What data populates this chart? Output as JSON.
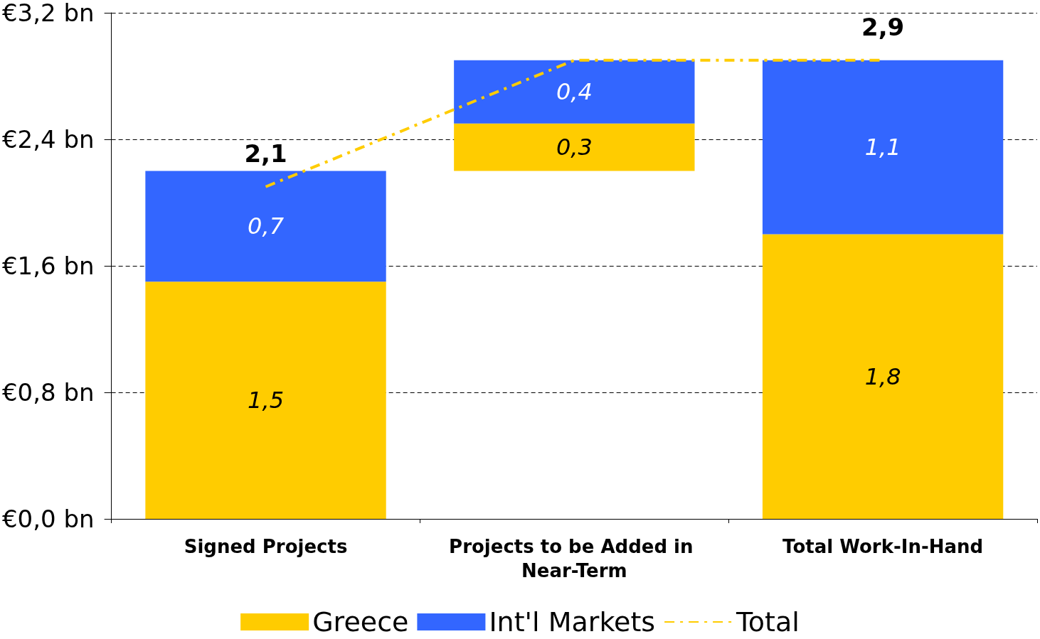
{
  "chart_data": {
    "type": "bar",
    "stacked": true,
    "categories": [
      "Signed Projects",
      "Projects to be Added in Near-Term",
      "Total Work-In-Hand"
    ],
    "series": [
      {
        "name": "Greece",
        "color": "#ffcc00",
        "base": [
          0,
          2.2,
          0
        ],
        "values": [
          1.5,
          0.3,
          1.8
        ],
        "value_labels": [
          "1,5",
          "0,3",
          "1,8"
        ]
      },
      {
        "name": "Int'l Markets",
        "color": "#3366ff",
        "values": [
          0.7,
          0.4,
          1.1
        ],
        "value_labels": [
          "0,7",
          "0,4",
          "1,1"
        ]
      },
      {
        "name": "Total",
        "type": "line",
        "color": "#ffcc00",
        "line_style": "dashed",
        "marker": "none",
        "values": [
          2.1,
          2.9,
          2.9
        ],
        "value_labels": [
          "2,1",
          null,
          "2,9"
        ]
      }
    ],
    "ylim": [
      0,
      3.2
    ],
    "yticks": [
      {
        "value": 0,
        "label": "€0,0 bn"
      },
      {
        "value": 0.8,
        "label": "€0,8 bn"
      },
      {
        "value": 1.6,
        "label": "€1,6 bn"
      },
      {
        "value": 2.4,
        "label": "€2,4 bn"
      },
      {
        "value": 3.2,
        "label": "€3,2 bn"
      }
    ],
    "grid": "y",
    "legend": "bottom"
  }
}
